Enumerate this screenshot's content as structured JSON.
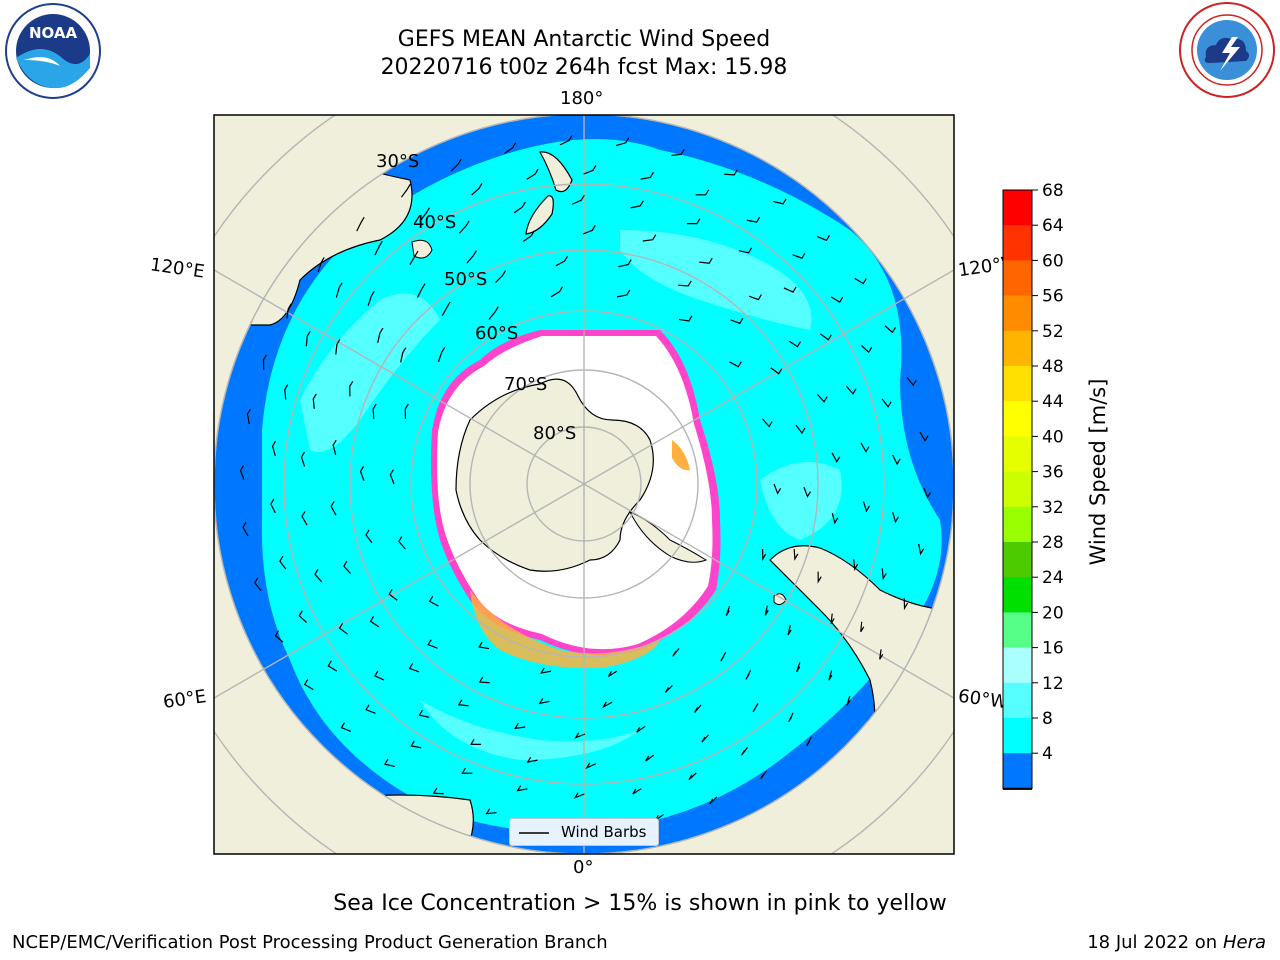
{
  "header": {
    "title_line1": "GEFS MEAN Antarctic Wind Speed",
    "title_line2": "20220716 t00z 264h fcst   Max: 15.98"
  },
  "logos": {
    "noaa": {
      "text": "NOAA",
      "ring_text": "NATIONAL OCEANIC AND ATMOSPHERIC ADMINISTRATION · U.S. DEPARTMENT OF COMMERCE"
    },
    "nws": {
      "ring_text": "NATIONAL WEATHER SERVICE"
    }
  },
  "map": {
    "longitude_labels": {
      "top": "180°",
      "bottom": "0°",
      "upper_left": "120°E",
      "upper_right": "120°W",
      "lower_left": "60°E",
      "lower_right": "60°W"
    },
    "latitude_labels": [
      "30°S",
      "40°S",
      "50°S",
      "60°S",
      "70°S",
      "80°S"
    ],
    "legend_label": "Wind Barbs"
  },
  "colorbar": {
    "label": "Wind Speed [m/s]",
    "ticks": [
      "68",
      "64",
      "60",
      "56",
      "52",
      "48",
      "44",
      "40",
      "36",
      "32",
      "28",
      "24",
      "20",
      "16",
      "12",
      "8",
      "4"
    ],
    "colors": [
      "#ff0000",
      "#ff3300",
      "#ff6600",
      "#ff8c00",
      "#ffb400",
      "#ffe000",
      "#ffff00",
      "#e6ff00",
      "#ccff00",
      "#99ff00",
      "#4ccc00",
      "#00e000",
      "#55ff88",
      "#aaffff",
      "#55ffff",
      "#00ffff",
      "#0077ff"
    ],
    "underflow_color": "#0000ee"
  },
  "colors": {
    "land": "#efefdb",
    "deep_ocean": "#0077ff",
    "ocean_8_12": "#00ffff",
    "ocean_12_16": "#55ffff",
    "sea_ice_edge": "#ff44cc",
    "sea_ice_inner": "#ffb040",
    "grid": "#b0b0b0"
  },
  "note": "Sea Ice Concentration > 15% is shown in pink to yellow",
  "footer": {
    "left": "NCEP/EMC/Verification Post Processing Product Generation Branch",
    "right_prefix": "18 Jul 2022 on ",
    "right_host": "Hera"
  }
}
